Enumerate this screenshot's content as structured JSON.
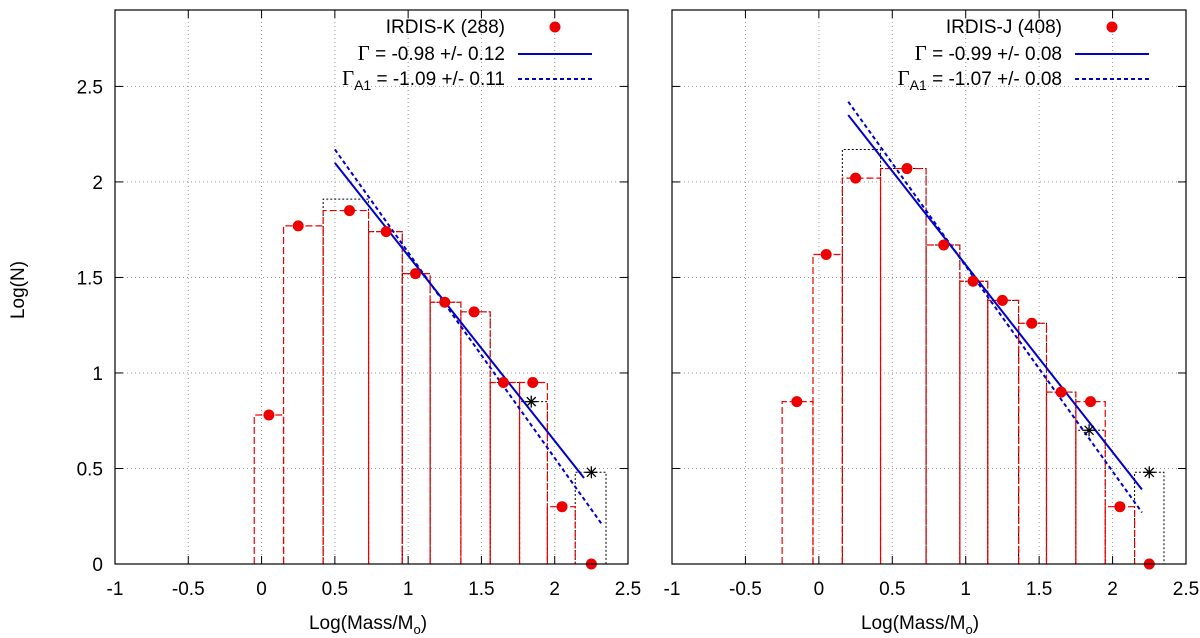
{
  "chart_data": [
    {
      "type": "histogram+line",
      "panel": "left",
      "ylabel": "Log(N)",
      "xlabel_main": "Log(Mass/M",
      "xlabel_sub": "o",
      "xlabel_close": ")",
      "xlim": [
        -1,
        2.5
      ],
      "ylim": [
        0,
        2.9
      ],
      "xticks": [
        "-1",
        "-0.5",
        "0",
        "0.5",
        "1",
        "1.5",
        "2",
        "2.5"
      ],
      "xtick_values": [
        -1,
        -0.5,
        0,
        0.5,
        1,
        1.5,
        2,
        2.5
      ],
      "yticks": [
        "0",
        "0.5",
        "1",
        "1.5",
        "2",
        "2.5"
      ],
      "ytick_values": [
        0,
        0.5,
        1,
        1.5,
        2,
        2.5
      ],
      "grid": true,
      "legend": [
        {
          "text": "IRDIS-K (288)",
          "style": "points"
        },
        {
          "symbol": "Γ",
          "sub": "",
          "text": " = -0.98 +/- 0.12",
          "style": "solid"
        },
        {
          "symbol": "Γ",
          "sub": "A1",
          "text": " = -1.09 +/- 0.11",
          "style": "dashed"
        }
      ],
      "points": {
        "x": [
          0.05,
          0.25,
          0.6,
          0.85,
          1.05,
          1.25,
          1.45,
          1.65,
          1.85,
          2.05,
          2.25
        ],
        "y": [
          0.78,
          1.77,
          1.85,
          1.74,
          1.52,
          1.37,
          1.32,
          0.95,
          0.95,
          0.3,
          0.0
        ]
      },
      "red_bins": [
        {
          "x0": -0.05,
          "x1": 0.15,
          "y": 0.78
        },
        {
          "x0": 0.15,
          "x1": 0.42,
          "y": 1.77
        },
        {
          "x0": 0.42,
          "x1": 0.73,
          "y": 1.85
        },
        {
          "x0": 0.73,
          "x1": 0.96,
          "y": 1.74
        },
        {
          "x0": 0.96,
          "x1": 1.15,
          "y": 1.52
        },
        {
          "x0": 1.15,
          "x1": 1.36,
          "y": 1.37
        },
        {
          "x0": 1.36,
          "x1": 1.56,
          "y": 1.32
        },
        {
          "x0": 1.56,
          "x1": 1.76,
          "y": 0.95
        },
        {
          "x0": 1.76,
          "x1": 1.95,
          "y": 0.95
        },
        {
          "x0": 1.95,
          "x1": 2.14,
          "y": 0.3
        }
      ],
      "black_bins": [
        {
          "x0": 0.42,
          "x1": 0.73,
          "y": 1.91
        },
        {
          "x0": 0.73,
          "x1": 0.96,
          "y": 1.74
        },
        {
          "x0": 0.96,
          "x1": 1.15,
          "y": 1.52
        },
        {
          "x0": 1.15,
          "x1": 1.36,
          "y": 1.37
        },
        {
          "x0": 1.36,
          "x1": 1.56,
          "y": 1.32
        },
        {
          "x0": 1.56,
          "x1": 1.76,
          "y": 0.95
        },
        {
          "x0": 1.76,
          "x1": 1.95,
          "y": 0.85
        },
        {
          "x0": 2.14,
          "x1": 2.35,
          "y": 0.48
        }
      ],
      "stars": {
        "x": [
          1.84,
          2.25
        ],
        "y": [
          0.85,
          0.48
        ]
      },
      "fit_solid": {
        "x": [
          0.5,
          2.2
        ],
        "y": [
          2.1,
          0.45
        ]
      },
      "fit_dashed": {
        "x": [
          0.5,
          2.32
        ],
        "y": [
          2.17,
          0.21
        ]
      }
    },
    {
      "type": "histogram+line",
      "panel": "right",
      "ylabel": "",
      "xlabel_main": "Log(Mass/M",
      "xlabel_sub": "o",
      "xlabel_close": ")",
      "xlim": [
        -1,
        2.5
      ],
      "ylim": [
        0,
        2.9
      ],
      "xticks": [
        "-1",
        "-0.5",
        "0",
        "0.5",
        "1",
        "1.5",
        "2",
        "2.5"
      ],
      "xtick_values": [
        -1,
        -0.5,
        0,
        0.5,
        1,
        1.5,
        2,
        2.5
      ],
      "yticks": [
        "0",
        "0.5",
        "1",
        "1.5",
        "2",
        "2.5"
      ],
      "ytick_values": [
        0,
        0.5,
        1,
        1.5,
        2,
        2.5
      ],
      "grid": true,
      "legend": [
        {
          "text": "IRDIS-J (408)",
          "style": "points"
        },
        {
          "symbol": "Γ",
          "sub": "",
          "text": " = -0.99 +/- 0.08",
          "style": "solid"
        },
        {
          "symbol": "Γ",
          "sub": "A1",
          "text": " = -1.07 +/- 0.08",
          "style": "dashed"
        }
      ],
      "points": {
        "x": [
          -0.15,
          0.05,
          0.25,
          0.6,
          0.85,
          1.05,
          1.25,
          1.45,
          1.65,
          1.85,
          2.05,
          2.25
        ],
        "y": [
          0.85,
          1.62,
          2.02,
          2.07,
          1.67,
          1.48,
          1.38,
          1.26,
          0.9,
          0.85,
          0.3,
          0.0
        ]
      },
      "red_bins": [
        {
          "x0": -0.25,
          "x1": -0.04,
          "y": 0.85
        },
        {
          "x0": -0.04,
          "x1": 0.16,
          "y": 1.62
        },
        {
          "x0": 0.16,
          "x1": 0.42,
          "y": 2.02
        },
        {
          "x0": 0.42,
          "x1": 0.73,
          "y": 2.07
        },
        {
          "x0": 0.73,
          "x1": 0.96,
          "y": 1.67
        },
        {
          "x0": 0.96,
          "x1": 1.15,
          "y": 1.48
        },
        {
          "x0": 1.15,
          "x1": 1.36,
          "y": 1.38
        },
        {
          "x0": 1.36,
          "x1": 1.55,
          "y": 1.26
        },
        {
          "x0": 1.55,
          "x1": 1.75,
          "y": 0.9
        },
        {
          "x0": 1.75,
          "x1": 1.95,
          "y": 0.85
        },
        {
          "x0": 1.95,
          "x1": 2.15,
          "y": 0.3
        }
      ],
      "black_bins": [
        {
          "x0": 0.16,
          "x1": 0.42,
          "y": 2.17
        },
        {
          "x0": 0.42,
          "x1": 0.73,
          "y": 2.07
        },
        {
          "x0": 0.73,
          "x1": 0.96,
          "y": 1.67
        },
        {
          "x0": 0.96,
          "x1": 1.15,
          "y": 1.48
        },
        {
          "x0": 1.15,
          "x1": 1.36,
          "y": 1.38
        },
        {
          "x0": 1.36,
          "x1": 1.55,
          "y": 1.26
        },
        {
          "x0": 1.55,
          "x1": 1.75,
          "y": 0.9
        },
        {
          "x0": 1.75,
          "x1": 1.95,
          "y": 0.7
        },
        {
          "x0": 2.15,
          "x1": 2.35,
          "y": 0.48
        }
      ],
      "stars": {
        "x": [
          1.84,
          2.25
        ],
        "y": [
          0.7,
          0.48
        ]
      },
      "fit_solid": {
        "x": [
          0.2,
          2.2
        ],
        "y": [
          2.35,
          0.39
        ]
      },
      "fit_dashed": {
        "x": [
          0.2,
          2.2
        ],
        "y": [
          2.42,
          0.27
        ]
      }
    }
  ],
  "colors": {
    "points": "#ee0000",
    "red_bins": "#ee0000",
    "fit": "#0000c8",
    "black_bins": "#000000",
    "grid": "#9a9a9a"
  }
}
